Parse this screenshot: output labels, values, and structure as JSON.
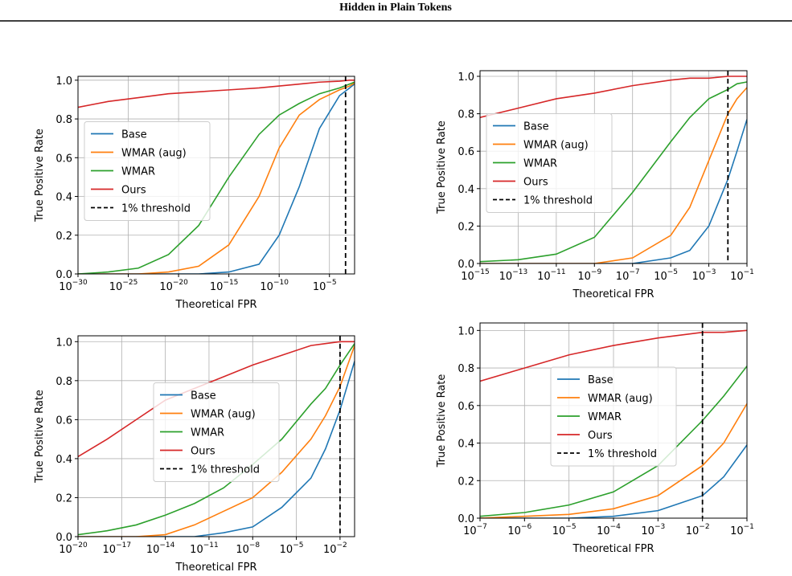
{
  "header": {
    "title": "Hidden in Plain Tokens"
  },
  "chart_data": [
    {
      "type": "line",
      "xlabel": "Theoretical FPR",
      "ylabel": "True Positive Rate",
      "xscale": "log",
      "grid": true,
      "legend": "center left",
      "xlim": [
        1e-30,
        0.00316
      ],
      "ylim": [
        0,
        1.02
      ],
      "xticks": [
        {
          "value": 1e-30,
          "label": "10",
          "sup": "−30"
        },
        {
          "value": 1e-25,
          "label": "10",
          "sup": "−25"
        },
        {
          "value": 1e-20,
          "label": "10",
          "sup": "−20"
        },
        {
          "value": 1e-15,
          "label": "10",
          "sup": "−15"
        },
        {
          "value": 1e-10,
          "label": "10",
          "sup": "−10"
        },
        {
          "value": 1e-05,
          "label": "10",
          "sup": "−5"
        }
      ],
      "yticks": [
        {
          "value": 0,
          "label": "0.0"
        },
        0.2,
        0.4,
        0.6,
        0.8,
        {
          "value": 1,
          "label": "1.0"
        }
      ],
      "x": [
        1e-30,
        1e-27,
        1e-24,
        1e-21,
        1e-18,
        1e-15,
        1e-12,
        1e-10,
        1e-08,
        1e-06,
        0.0001,
        0.001,
        0.003
      ],
      "series": [
        {
          "name": "Base",
          "color": "#1f77b4",
          "values": [
            0,
            0,
            0,
            0,
            0,
            0.01,
            0.05,
            0.2,
            0.45,
            0.75,
            0.92,
            0.96,
            0.98
          ]
        },
        {
          "name": "WMAR (aug)",
          "color": "#ff7f0e",
          "values": [
            0,
            0,
            0,
            0.01,
            0.04,
            0.15,
            0.4,
            0.65,
            0.82,
            0.9,
            0.95,
            0.97,
            0.985
          ]
        },
        {
          "name": "WMAR",
          "color": "#2ca02c",
          "values": [
            0,
            0.01,
            0.03,
            0.1,
            0.25,
            0.5,
            0.72,
            0.82,
            0.88,
            0.93,
            0.96,
            0.98,
            0.99
          ]
        },
        {
          "name": "Ours",
          "color": "#d62728",
          "values": [
            0.86,
            0.89,
            0.91,
            0.93,
            0.94,
            0.95,
            0.96,
            0.97,
            0.98,
            0.99,
            0.995,
            1,
            1
          ]
        }
      ],
      "threshold": {
        "name": "1% threshold",
        "x": 0.0004,
        "color": "#000000"
      }
    },
    {
      "type": "line",
      "xlabel": "Theoretical FPR",
      "ylabel": "True Positive Rate",
      "xscale": "log",
      "grid": true,
      "legend": "center left",
      "xlim": [
        1e-15,
        0.1
      ],
      "ylim": [
        0,
        1.03
      ],
      "xticks": [
        {
          "value": 1e-15,
          "label": "10",
          "sup": "−15"
        },
        {
          "value": 1e-13,
          "label": "10",
          "sup": "−13"
        },
        {
          "value": 1e-11,
          "label": "10",
          "sup": "−11"
        },
        {
          "value": 1e-09,
          "label": "10",
          "sup": "−9"
        },
        {
          "value": 1e-07,
          "label": "10",
          "sup": "−7"
        },
        {
          "value": 1e-05,
          "label": "10",
          "sup": "−5"
        },
        {
          "value": 0.001,
          "label": "10",
          "sup": "−3"
        },
        {
          "value": 0.1,
          "label": "10",
          "sup": "−1"
        }
      ],
      "yticks": [
        {
          "value": 0,
          "label": "0.0"
        },
        0.2,
        0.4,
        0.6,
        0.8,
        {
          "value": 1,
          "label": "1.0"
        }
      ],
      "x": [
        1e-15,
        1e-13,
        1e-11,
        1e-09,
        1e-07,
        1e-05,
        0.0001,
        0.001,
        0.01,
        0.03,
        0.1
      ],
      "series": [
        {
          "name": "Base",
          "color": "#1f77b4",
          "values": [
            0,
            0,
            0,
            0,
            0,
            0.03,
            0.07,
            0.2,
            0.45,
            0.6,
            0.77
          ]
        },
        {
          "name": "WMAR (aug)",
          "color": "#ff7f0e",
          "values": [
            0,
            0,
            0,
            0,
            0.03,
            0.15,
            0.3,
            0.55,
            0.8,
            0.88,
            0.94
          ]
        },
        {
          "name": "WMAR",
          "color": "#2ca02c",
          "values": [
            0.01,
            0.02,
            0.05,
            0.14,
            0.38,
            0.65,
            0.78,
            0.88,
            0.93,
            0.96,
            0.97
          ]
        },
        {
          "name": "Ours",
          "color": "#d62728",
          "values": [
            0.78,
            0.83,
            0.88,
            0.91,
            0.95,
            0.98,
            0.99,
            0.99,
            1,
            1,
            1
          ]
        }
      ],
      "threshold": {
        "name": "1% threshold",
        "x": 0.01,
        "color": "#000000"
      }
    },
    {
      "type": "line",
      "xlabel": "Theoretical FPR",
      "ylabel": "True Positive Rate",
      "xscale": "log",
      "grid": true,
      "legend": "center",
      "xlim": [
        1e-20,
        0.1
      ],
      "ylim": [
        0,
        1.03
      ],
      "xticks": [
        {
          "value": 1e-20,
          "label": "10",
          "sup": "−20"
        },
        {
          "value": 1e-17,
          "label": "10",
          "sup": "−17"
        },
        {
          "value": 1e-14,
          "label": "10",
          "sup": "−14"
        },
        {
          "value": 1e-11,
          "label": "10",
          "sup": "−11"
        },
        {
          "value": 1e-08,
          "label": "10",
          "sup": "−8"
        },
        {
          "value": 1e-05,
          "label": "10",
          "sup": "−5"
        },
        {
          "value": 0.01,
          "label": "10",
          "sup": "−2"
        }
      ],
      "yticks": [
        {
          "value": 0,
          "label": "0.0"
        },
        0.2,
        0.4,
        0.6,
        0.8,
        {
          "value": 1,
          "label": "1.0"
        }
      ],
      "x": [
        1e-20,
        1e-18,
        1e-16,
        1e-14,
        1e-12,
        1e-10,
        1e-08,
        1e-06,
        0.0001,
        0.001,
        0.01,
        0.1
      ],
      "series": [
        {
          "name": "Base",
          "color": "#1f77b4",
          "values": [
            0,
            0,
            0,
            0,
            0,
            0.02,
            0.05,
            0.15,
            0.3,
            0.45,
            0.65,
            0.9
          ]
        },
        {
          "name": "WMAR (aug)",
          "color": "#ff7f0e",
          "values": [
            0,
            0,
            0,
            0.01,
            0.06,
            0.13,
            0.2,
            0.33,
            0.5,
            0.62,
            0.77,
            0.98
          ]
        },
        {
          "name": "WMAR",
          "color": "#2ca02c",
          "values": [
            0.01,
            0.03,
            0.06,
            0.11,
            0.17,
            0.25,
            0.37,
            0.5,
            0.68,
            0.76,
            0.88,
            0.99
          ]
        },
        {
          "name": "Ours",
          "color": "#d62728",
          "values": [
            0.41,
            0.5,
            0.6,
            0.7,
            0.76,
            0.82,
            0.88,
            0.93,
            0.98,
            0.99,
            1,
            1
          ]
        }
      ],
      "threshold": {
        "name": "1% threshold",
        "x": 0.01,
        "color": "#000000"
      }
    },
    {
      "type": "line",
      "xlabel": "Theoretical FPR",
      "ylabel": "True Positive Rate",
      "xscale": "log",
      "grid": true,
      "legend": "center",
      "xlim": [
        1e-07,
        0.1
      ],
      "ylim": [
        0,
        1.04
      ],
      "xticks": [
        {
          "value": 1e-07,
          "label": "10",
          "sup": "−7"
        },
        {
          "value": 1e-06,
          "label": "10",
          "sup": "−6"
        },
        {
          "value": 1e-05,
          "label": "10",
          "sup": "−5"
        },
        {
          "value": 0.0001,
          "label": "10",
          "sup": "−4"
        },
        {
          "value": 0.001,
          "label": "10",
          "sup": "−3"
        },
        {
          "value": 0.01,
          "label": "10",
          "sup": "−2"
        },
        {
          "value": 0.1,
          "label": "10",
          "sup": "−1"
        }
      ],
      "yticks": [
        {
          "value": 0,
          "label": "0.0"
        },
        0.2,
        0.4,
        0.6,
        0.8,
        {
          "value": 1,
          "label": "1.0"
        }
      ],
      "x": [
        1e-07,
        1e-06,
        1e-05,
        0.0001,
        0.001,
        0.01,
        0.03,
        0.1
      ],
      "series": [
        {
          "name": "Base",
          "color": "#1f77b4",
          "values": [
            0,
            0,
            0,
            0.01,
            0.04,
            0.12,
            0.22,
            0.39
          ]
        },
        {
          "name": "WMAR (aug)",
          "color": "#ff7f0e",
          "values": [
            0,
            0.01,
            0.02,
            0.05,
            0.12,
            0.28,
            0.4,
            0.61
          ]
        },
        {
          "name": "WMAR",
          "color": "#2ca02c",
          "values": [
            0.01,
            0.03,
            0.07,
            0.14,
            0.28,
            0.52,
            0.65,
            0.81
          ]
        },
        {
          "name": "Ours",
          "color": "#d62728",
          "values": [
            0.73,
            0.8,
            0.87,
            0.92,
            0.96,
            0.99,
            0.99,
            1
          ]
        }
      ],
      "threshold": {
        "name": "1% threshold",
        "x": 0.01,
        "color": "#000000"
      }
    }
  ]
}
